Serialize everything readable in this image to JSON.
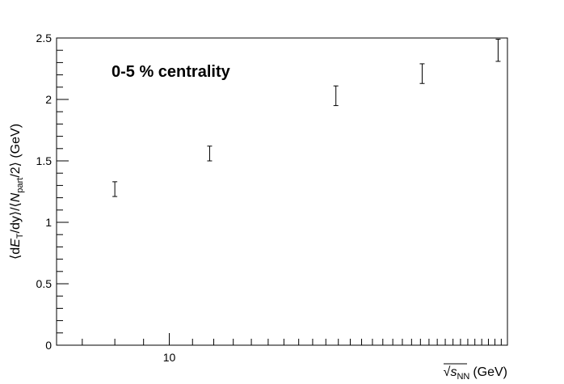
{
  "chart_data": {
    "type": "scatter",
    "title": "",
    "annotation": "0-5 % centrality",
    "xlabel": {
      "prefix": "√",
      "var": "s",
      "sub": "NN",
      "unit": "(GeV)"
    },
    "ylabel": {
      "part1": "⟨d",
      "var1": "E",
      "sub1": "T",
      "part2": "/dy⟩/⟨",
      "var2": "N",
      "sub2": "part",
      "part3": "/2⟩ (GeV)"
    },
    "x_scale": "log",
    "xlim": [
      6.3,
      40
    ],
    "ylim": [
      0,
      2.5
    ],
    "x_tick_labels": [
      "10"
    ],
    "y_tick_labels": [
      "0",
      "0.5",
      "1",
      "1.5",
      "2",
      "2.5"
    ],
    "grid": false,
    "points": [
      {
        "x": 8.0,
        "y": 1.27,
        "err_low": 0.06,
        "err_high": 0.06
      },
      {
        "x": 11.8,
        "y": 1.56,
        "err_low": 0.06,
        "err_high": 0.06
      },
      {
        "x": 19.8,
        "y": 2.03,
        "err_low": 0.08,
        "err_high": 0.08
      },
      {
        "x": 28.2,
        "y": 2.21,
        "err_low": 0.08,
        "err_high": 0.08
      },
      {
        "x": 38.5,
        "y": 2.4,
        "err_low": 0.09,
        "err_high": 0.09
      }
    ],
    "colors": {
      "marker": "#000000",
      "axis": "#000000",
      "background": "#ffffff"
    }
  }
}
